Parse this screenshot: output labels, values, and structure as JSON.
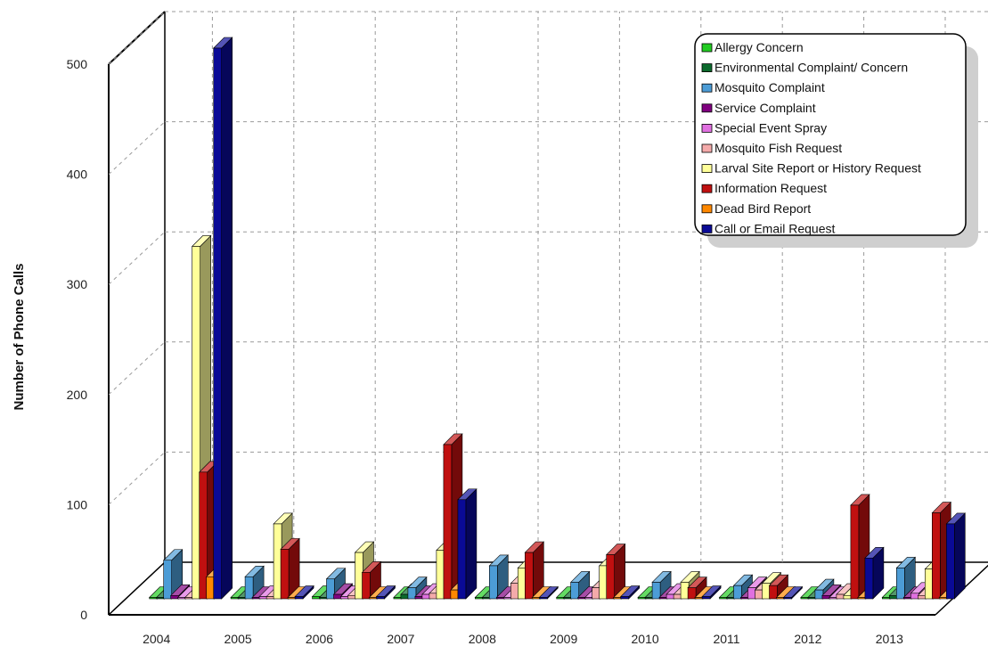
{
  "chart_data": {
    "type": "bar",
    "title": "",
    "xlabel": "",
    "ylabel": "Number of Phone Calls",
    "ylim": [
      0,
      500
    ],
    "yticks": [
      0,
      100,
      200,
      300,
      400,
      500
    ],
    "grid": true,
    "legend_position": "top-right",
    "categories": [
      "2004",
      "2005",
      "2006",
      "2007",
      "2008",
      "2009",
      "2010",
      "2011",
      "2012",
      "2013"
    ],
    "series": [
      {
        "name": "Allergy Concern",
        "color": "#22cc22",
        "values": [
          0,
          1,
          2,
          0,
          0,
          0,
          0,
          0,
          0,
          0
        ]
      },
      {
        "name": "Environmental Complaint/ Concern",
        "color": "#0b6a2c",
        "values": [
          1,
          0,
          1,
          4,
          0,
          0,
          0,
          0,
          0,
          3
        ]
      },
      {
        "name": "Mosquito Complaint",
        "color": "#4c9cd6",
        "values": [
          35,
          20,
          18,
          10,
          30,
          15,
          15,
          12,
          8,
          28
        ]
      },
      {
        "name": "Service Complaint",
        "color": "#800080",
        "values": [
          3,
          1,
          4,
          2,
          0,
          0,
          0,
          0,
          3,
          0
        ]
      },
      {
        "name": "Special Event Spray",
        "color": "#e070e0",
        "values": [
          0,
          2,
          2,
          4,
          0,
          0,
          4,
          10,
          0,
          5
        ]
      },
      {
        "name": "Mosquito Fish Request",
        "color": "#f4aaaa",
        "values": [
          1,
          2,
          3,
          5,
          14,
          10,
          4,
          8,
          4,
          3
        ]
      },
      {
        "name": "Larval Site Report or History Request",
        "color": "#ffff99",
        "values": [
          320,
          68,
          42,
          44,
          28,
          30,
          15,
          14,
          3,
          27
        ]
      },
      {
        "name": "Information Request",
        "color": "#c01010",
        "values": [
          115,
          45,
          24,
          140,
          42,
          40,
          10,
          12,
          85,
          78
        ]
      },
      {
        "name": "Dead Bird Report",
        "color": "#ff8800",
        "values": [
          20,
          0,
          0,
          8,
          0,
          0,
          0,
          0,
          0,
          0
        ]
      },
      {
        "name": "Call or Email Request",
        "color": "#0a0a96",
        "values": [
          500,
          2,
          2,
          90,
          0,
          2,
          2,
          0,
          37,
          68
        ]
      }
    ]
  }
}
